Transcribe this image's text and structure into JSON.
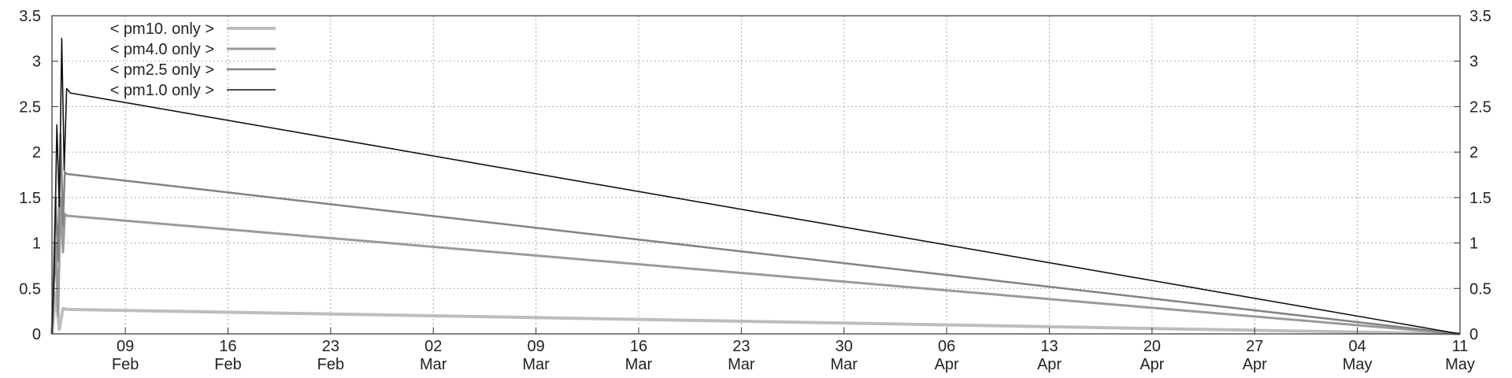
{
  "chart_data": {
    "type": "line",
    "title": "",
    "xlabel": "",
    "ylabel": "",
    "ylim": [
      0,
      3.5
    ],
    "y_ticks": [
      "0",
      "0.5",
      "1",
      "1.5",
      "2",
      "2.5",
      "3",
      "3.5"
    ],
    "y_tick_values": [
      0,
      0.5,
      1,
      1.5,
      2,
      2.5,
      3,
      3.5
    ],
    "xlim": [
      "2025-02-04",
      "2025-05-11"
    ],
    "x_ticks": [
      {
        "date": "2025-02-09",
        "day": "09",
        "month": "Feb"
      },
      {
        "date": "2025-02-16",
        "day": "16",
        "month": "Feb"
      },
      {
        "date": "2025-02-23",
        "day": "23",
        "month": "Feb"
      },
      {
        "date": "2025-03-02",
        "day": "02",
        "month": "Mar"
      },
      {
        "date": "2025-03-09",
        "day": "09",
        "month": "Mar"
      },
      {
        "date": "2025-03-16",
        "day": "16",
        "month": "Mar"
      },
      {
        "date": "2025-03-23",
        "day": "23",
        "month": "Mar"
      },
      {
        "date": "2025-03-30",
        "day": "30",
        "month": "Mar"
      },
      {
        "date": "2025-04-06",
        "day": "06",
        "month": "Apr"
      },
      {
        "date": "2025-04-13",
        "day": "13",
        "month": "Apr"
      },
      {
        "date": "2025-04-20",
        "day": "20",
        "month": "Apr"
      },
      {
        "date": "2025-04-27",
        "day": "27",
        "month": "Apr"
      },
      {
        "date": "2025-05-04",
        "day": "04",
        "month": "May"
      },
      {
        "date": "2025-05-11",
        "day": "11",
        "month": "May"
      }
    ],
    "grid": true,
    "legend_position": "top-left",
    "series": [
      {
        "name": "< pm10. only >",
        "color": "#bdbdbd",
        "points": [
          [
            "2025-02-04T00:00",
            0
          ],
          [
            "2025-02-04T06:00",
            0.45
          ],
          [
            "2025-02-04T12:00",
            0.05
          ],
          [
            "2025-02-04T18:00",
            0.28
          ],
          [
            "2025-02-05T00:00",
            0.27
          ],
          [
            "2025-05-11T00:00",
            0
          ]
        ]
      },
      {
        "name": "< pm4.0 only >",
        "color": "#9a9a9a",
        "points": [
          [
            "2025-02-04T00:00",
            0
          ],
          [
            "2025-02-04T06:00",
            1.0
          ],
          [
            "2025-02-04T10:00",
            0.2
          ],
          [
            "2025-02-04T14:00",
            1.5
          ],
          [
            "2025-02-04T18:00",
            0.9
          ],
          [
            "2025-02-04T21:00",
            1.32
          ],
          [
            "2025-02-05T00:00",
            1.3
          ],
          [
            "2025-05-11T00:00",
            0
          ]
        ]
      },
      {
        "name": "< pm2.5 only >",
        "color": "#828282",
        "points": [
          [
            "2025-02-04T00:00",
            0
          ],
          [
            "2025-02-04T06:00",
            1.5
          ],
          [
            "2025-02-04T10:00",
            0.8
          ],
          [
            "2025-02-04T14:00",
            2.2
          ],
          [
            "2025-02-04T18:00",
            1.2
          ],
          [
            "2025-02-04T21:00",
            1.78
          ],
          [
            "2025-02-05T00:00",
            1.76
          ],
          [
            "2025-05-11T00:00",
            0
          ]
        ]
      },
      {
        "name": "< pm1.0 only >",
        "color": "#111111",
        "points": [
          [
            "2025-02-04T00:00",
            0
          ],
          [
            "2025-02-04T04:00",
            0.75
          ],
          [
            "2025-02-04T08:00",
            2.3
          ],
          [
            "2025-02-04T12:00",
            1.4
          ],
          [
            "2025-02-04T16:00",
            3.25
          ],
          [
            "2025-02-04T20:00",
            1.8
          ],
          [
            "2025-02-05T00:00",
            2.7
          ],
          [
            "2025-02-05T06:00",
            2.65
          ],
          [
            "2025-05-11T00:00",
            0
          ]
        ]
      }
    ]
  }
}
